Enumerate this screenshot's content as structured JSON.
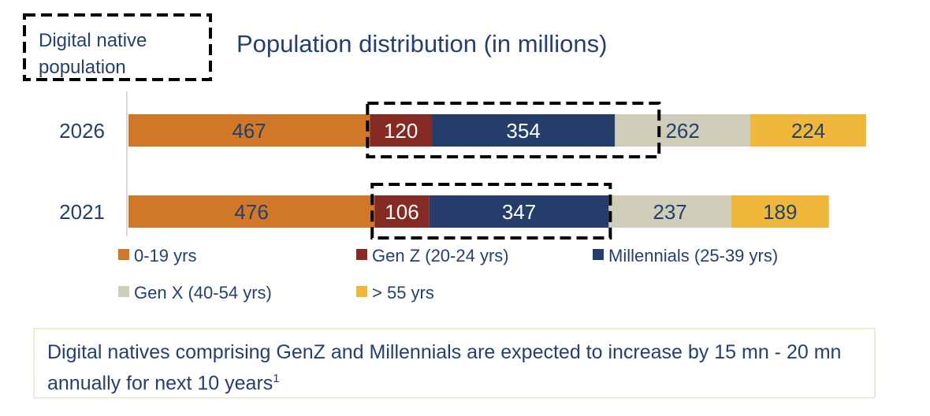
{
  "chart_data": {
    "type": "bar",
    "orientation": "horizontal",
    "stacked": true,
    "title": "Population distribution (in millions)",
    "callout": "Digital native population",
    "categories": [
      "2026",
      "2021"
    ],
    "series": [
      {
        "name": "0-19 yrs",
        "color": "#D07828",
        "label_color": "#24406E",
        "values": [
          467,
          476
        ]
      },
      {
        "name": "Gen Z (20-24 yrs)",
        "color": "#862B24",
        "label_color": "#FFFFFF",
        "values": [
          120,
          106
        ]
      },
      {
        "name": "Millennials (25-39 yrs)",
        "color": "#253D6A",
        "label_color": "#FFFFFF",
        "values": [
          354,
          347
        ]
      },
      {
        "name": "Gen X (40-54 yrs)",
        "color": "#CFCDBA",
        "label_color": "#24406E",
        "values": [
          262,
          237
        ]
      },
      {
        "name": "> 55 yrs",
        "color": "#EFB83A",
        "label_color": "#24406E",
        "values": [
          224,
          189
        ]
      }
    ],
    "highlighted_series": [
      "Gen Z (20-24 yrs)",
      "Millennials (25-39 yrs)"
    ],
    "legend_position": "bottom",
    "grid": false
  },
  "note": {
    "text": "Digital natives comprising GenZ and Millennials are expected to increase by 15 mn - 20 mn annually for next 10 years",
    "footnote_marker": "1"
  }
}
